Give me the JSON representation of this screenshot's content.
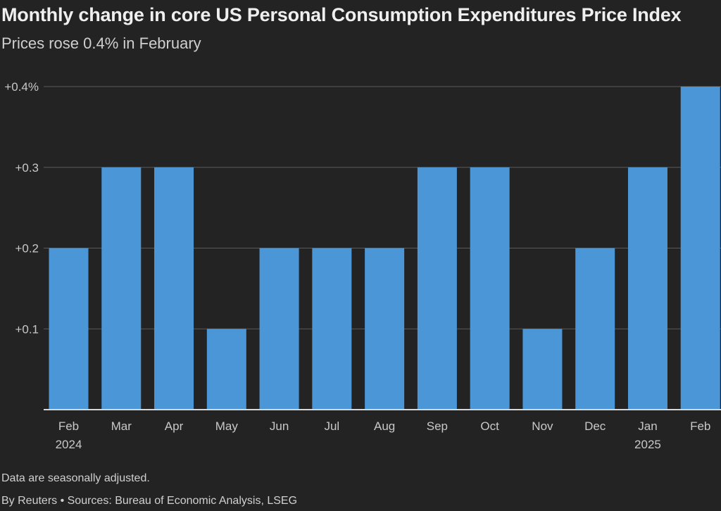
{
  "title": "Monthly change in core US Personal Consumption Expenditures Price Index",
  "subtitle": "Prices rose 0.4% in February",
  "note": "Data are seasonally adjusted.",
  "source": "By Reuters • Sources: Bureau of Economic Analysis, LSEG",
  "colors": {
    "bar": "#4b96d6",
    "background": "#232323",
    "grid": "#5a5a5a",
    "axis": "#d8d8d8",
    "tick_text": "#c8c8c8"
  },
  "chart_data": {
    "type": "bar",
    "categories": [
      "Feb",
      "Mar",
      "Apr",
      "May",
      "Jun",
      "Jul",
      "Aug",
      "Sep",
      "Oct",
      "Nov",
      "Dec",
      "Jan",
      "Feb"
    ],
    "category_sublabels": [
      "2024",
      "",
      "",
      "",
      "",
      "",
      "",
      "",
      "",
      "",
      "",
      "2025",
      ""
    ],
    "values": [
      0.2,
      0.3,
      0.3,
      0.1,
      0.2,
      0.2,
      0.2,
      0.3,
      0.3,
      0.1,
      0.2,
      0.3,
      0.4
    ],
    "ylim": [
      0,
      0.4
    ],
    "yticks": [
      0.1,
      0.2,
      0.3,
      0.4
    ],
    "ytick_labels": [
      "+0.1",
      "+0.2",
      "+0.3",
      "+0.4%"
    ],
    "xlabel": "",
    "ylabel": "",
    "grid": true
  }
}
